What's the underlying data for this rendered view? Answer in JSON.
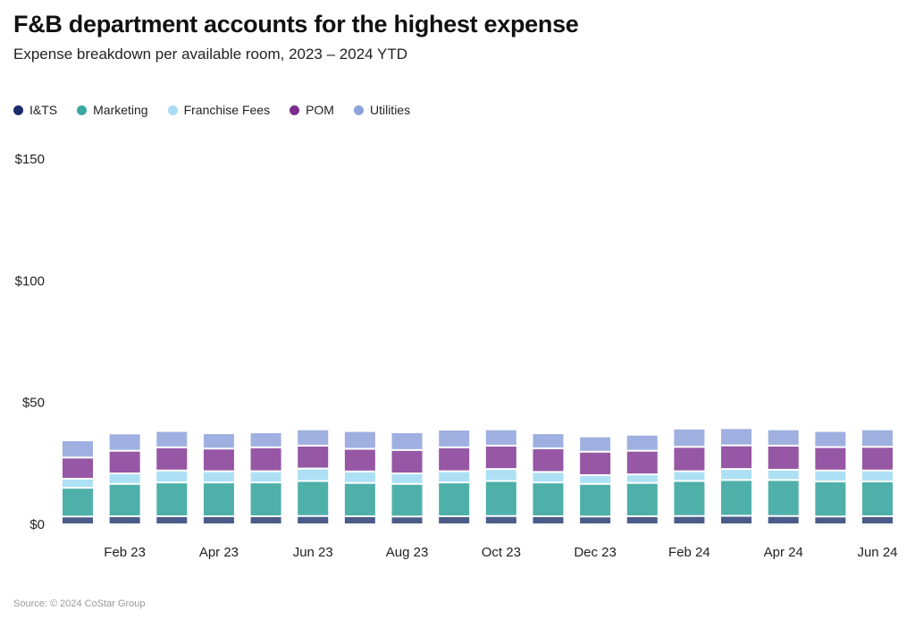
{
  "chart_data": {
    "type": "bar",
    "stacked": true,
    "title": "F&B department accounts for the highest expense",
    "subtitle": "Expense breakdown per available room, 2023 – 2024 YTD",
    "source": "Source: © 2024 CoStar Group",
    "xlabel": "",
    "ylabel": "",
    "ylim": [
      0,
      150
    ],
    "yticks": [
      0,
      50,
      100,
      150
    ],
    "ytick_labels": [
      "$0",
      "$50",
      "$100",
      "$150"
    ],
    "categories": [
      "Jan 23",
      "Feb 23",
      "Mar 23",
      "Apr 23",
      "May 23",
      "Jun 23",
      "Jul 23",
      "Aug 23",
      "Sep 23",
      "Oct 23",
      "Nov 23",
      "Dec 23",
      "Jan 24",
      "Feb 24",
      "Mar 24",
      "Apr 24",
      "May 24",
      "Jun 24"
    ],
    "xtick_labels": [
      "Feb 23",
      "Apr 23",
      "Jun 23",
      "Aug 23",
      "Oct 23",
      "Dec 23",
      "Feb 24",
      "Apr 24",
      "Jun 24"
    ],
    "legend_position": "top-left",
    "series": [
      {
        "name": "I&TS",
        "color": "#4b5b8a",
        "legend_color": "#1d2b6b",
        "values": [
          3.2,
          3.3,
          3.3,
          3.3,
          3.3,
          3.4,
          3.3,
          3.2,
          3.3,
          3.4,
          3.3,
          3.2,
          3.3,
          3.4,
          3.5,
          3.4,
          3.2,
          3.3
        ]
      },
      {
        "name": "Marketing",
        "color": "#4fb0aa",
        "legend_color": "#3aa8a0",
        "values": [
          11.8,
          13.3,
          13.9,
          13.9,
          13.9,
          14.4,
          13.7,
          13.4,
          13.9,
          14.4,
          13.9,
          13.4,
          13.7,
          14.4,
          14.7,
          14.8,
          14.4,
          14.3
        ]
      },
      {
        "name": "Franchise Fees",
        "color": "#aee0f5",
        "legend_color": "#a8dcf5",
        "values": [
          3.7,
          4.3,
          4.9,
          4.6,
          4.6,
          5.1,
          4.7,
          4.3,
          4.6,
          4.9,
          4.3,
          3.6,
          3.5,
          4.0,
          4.5,
          4.2,
          4.5,
          4.5
        ]
      },
      {
        "name": "POM",
        "color": "#9657a5",
        "legend_color": "#7b2d8e",
        "values": [
          8.7,
          9.3,
          9.5,
          9.3,
          9.8,
          9.4,
          9.3,
          9.6,
          9.8,
          9.6,
          9.7,
          9.6,
          9.7,
          10.0,
          9.7,
          9.9,
          9.6,
          9.7
        ]
      },
      {
        "name": "Utilities",
        "color": "#9fb0e0",
        "legend_color": "#8ea3dc",
        "values": [
          7.1,
          7.1,
          6.7,
          6.3,
          6.2,
          6.7,
          7.3,
          7.3,
          7.3,
          6.7,
          6.2,
          6.3,
          6.6,
          7.5,
          7.1,
          6.7,
          6.6,
          7.2
        ]
      }
    ]
  }
}
